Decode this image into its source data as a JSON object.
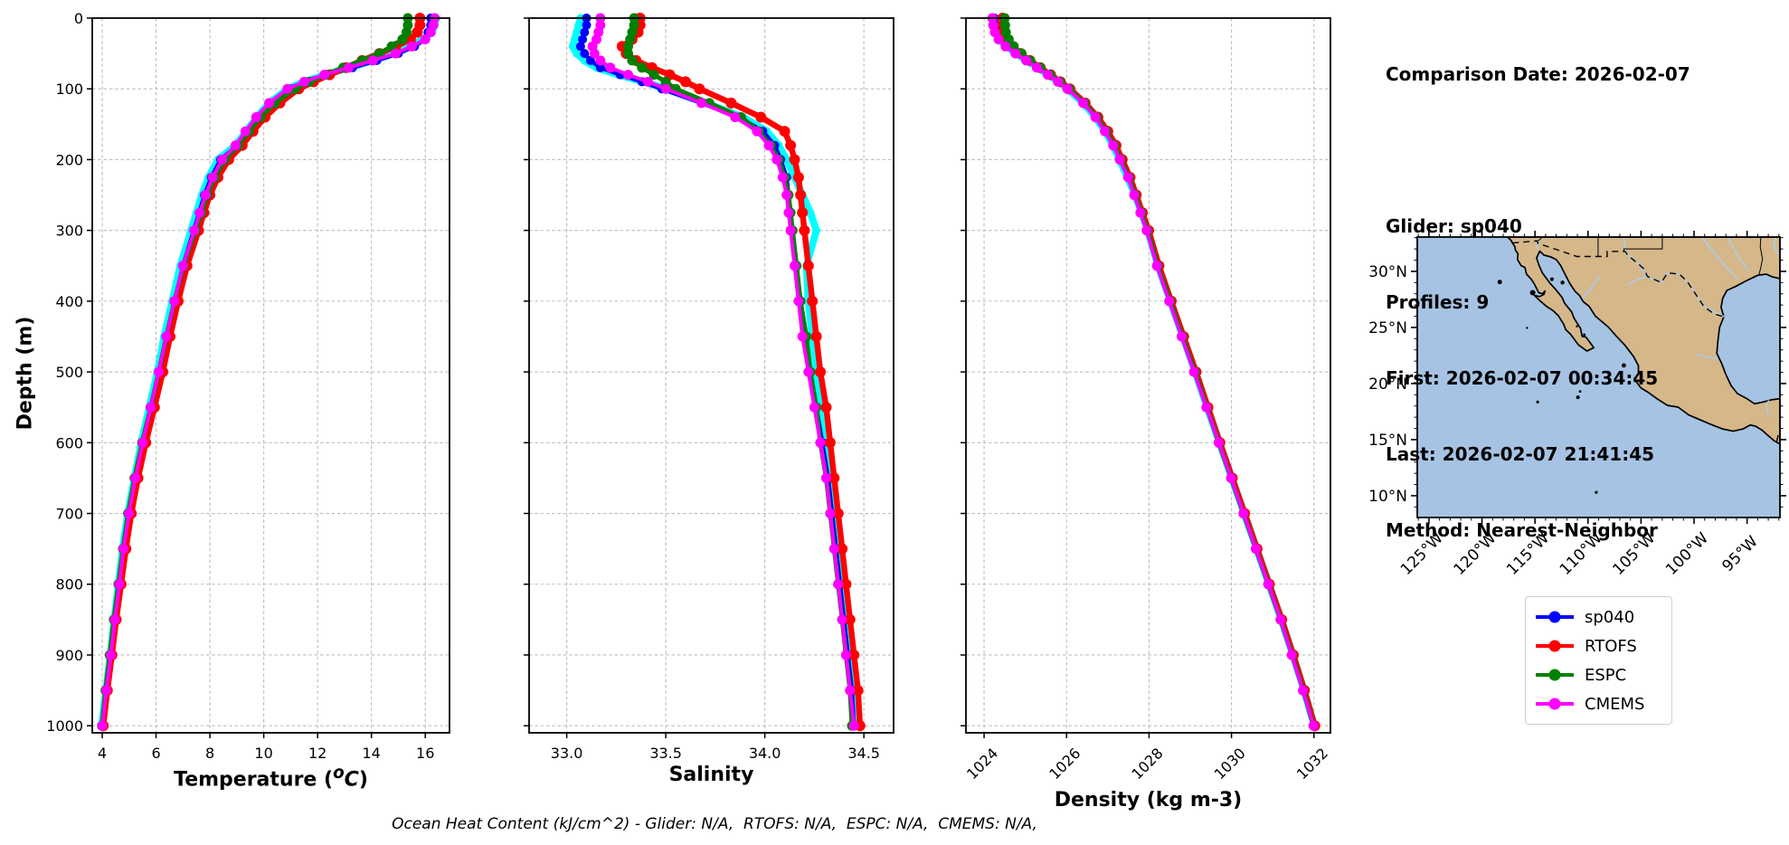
{
  "figure": {
    "background": "#ffffff"
  },
  "info": {
    "comparison_date": "Comparison Date: 2026-02-07",
    "glider": "Glider: sp040",
    "profiles": "Profiles: 9",
    "first": "First: 2026-02-07 00:34:45",
    "last": "Last: 2026-02-07 21:41:45",
    "method": "Method: Nearest-Neighbor"
  },
  "legend": {
    "items": [
      {
        "label": "sp040",
        "color": "#0000ff"
      },
      {
        "label": "RTOFS",
        "color": "#ff0000"
      },
      {
        "label": "ESPC",
        "color": "#008000"
      },
      {
        "label": "CMEMS",
        "color": "#ff00ff"
      }
    ]
  },
  "annotation": {
    "text": "Ocean Heat Content (kJ/cm^2) - Glider: N/A,  RTOFS: N/A,  ESPC: N/A,  CMEMS: N/A,"
  },
  "chart_data": {
    "type": "line",
    "ylabel": "Depth (m)",
    "ylim": [
      0,
      1010
    ],
    "yticks": [
      0,
      100,
      200,
      300,
      400,
      500,
      600,
      700,
      800,
      900,
      1000
    ],
    "depths_m": [
      0,
      10,
      20,
      30,
      40,
      50,
      60,
      70,
      80,
      90,
      100,
      120,
      140,
      160,
      180,
      200,
      225,
      250,
      275,
      300,
      350,
      400,
      450,
      500,
      550,
      600,
      650,
      700,
      750,
      800,
      850,
      900,
      950,
      1000
    ],
    "charts": [
      {
        "name": "temperature",
        "xlabel": "Temperature (oC)",
        "xlabel_parts": {
          "pre": "Temperature (",
          "sup": "o",
          "main": "C",
          "post": ")"
        },
        "xlim": [
          3.63,
          16.9
        ],
        "xticks": [
          4,
          6,
          8,
          10,
          12,
          14,
          16
        ],
        "xtick_labels": [
          "4",
          "6",
          "8",
          "10",
          "12",
          "14",
          "16"
        ],
        "xtick_rotation": 0,
        "series": [
          {
            "name": "raw",
            "color": "#00ffff",
            "lw": 8,
            "r": 4.5,
            "values": [
              16.4,
              16.35,
              16.25,
              15.9,
              15.45,
              14.85,
              14.05,
              13.15,
              12.3,
              11.5,
              10.9,
              10.2,
              9.75,
              9.35,
              8.95,
              8.3,
              7.95,
              7.7,
              7.5,
              7.3,
              6.9,
              6.6,
              6.3,
              6.05,
              5.75,
              5.45,
              5.2,
              4.95,
              4.76,
              4.6,
              4.45,
              4.3,
              4.14,
              3.98
            ]
          },
          {
            "name": "sp040",
            "color": "#0000ff",
            "lw": 4.5,
            "r": 5,
            "values": [
              16.2,
              16.2,
              16.1,
              16.0,
              15.6,
              15.0,
              14.2,
              13.3,
              12.4,
              11.6,
              11.0,
              10.3,
              9.8,
              9.4,
              9.0,
              8.4,
              8.05,
              7.8,
              7.6,
              7.4,
              7.0,
              6.7,
              6.4,
              6.12,
              5.82,
              5.5,
              5.22,
              4.98,
              4.78,
              4.62,
              4.46,
              4.31,
              4.15,
              4.0
            ]
          },
          {
            "name": "RTOFS",
            "color": "#ff0000",
            "lw": 6.5,
            "r": 6,
            "values": [
              15.8,
              15.8,
              15.7,
              15.45,
              14.9,
              14.3,
              13.65,
              13.05,
              12.45,
              11.85,
              11.3,
              10.6,
              10.05,
              9.6,
              9.2,
              8.7,
              8.3,
              8.0,
              7.78,
              7.58,
              7.15,
              6.82,
              6.52,
              6.25,
              5.94,
              5.62,
              5.33,
              5.08,
              4.88,
              4.7,
              4.52,
              4.36,
              4.19,
              4.04
            ]
          },
          {
            "name": "ESPC",
            "color": "#008000",
            "lw": 5,
            "r": 5.5,
            "values": [
              15.35,
              15.35,
              15.3,
              15.15,
              14.75,
              14.3,
              13.65,
              12.95,
              12.3,
              11.7,
              11.15,
              10.42,
              9.88,
              9.45,
              9.05,
              8.55,
              8.18,
              7.9,
              7.68,
              7.46,
              7.02,
              6.68,
              6.38,
              6.1,
              5.8,
              5.48,
              5.2,
              4.96,
              4.77,
              4.6,
              4.43,
              4.28,
              4.12,
              3.99
            ]
          },
          {
            "name": "CMEMS",
            "color": "#ff00ff",
            "lw": 4,
            "r": 5.5,
            "values": [
              16.35,
              16.3,
              16.2,
              16.0,
              15.5,
              14.9,
              14.05,
              13.15,
              12.25,
              11.5,
              10.88,
              10.2,
              9.72,
              9.32,
              8.95,
              8.45,
              8.1,
              7.84,
              7.62,
              7.42,
              7.0,
              6.68,
              6.38,
              6.1,
              5.8,
              5.5,
              5.23,
              4.99,
              4.79,
              4.63,
              4.47,
              4.32,
              4.15,
              4.0
            ]
          }
        ]
      },
      {
        "name": "salinity",
        "xlabel": "Salinity",
        "xlim": [
          32.81,
          34.65
        ],
        "xticks": [
          33.0,
          33.5,
          34.0,
          34.5
        ],
        "xtick_labels": [
          "33.0",
          "33.5",
          "34.0",
          "34.5"
        ],
        "xtick_rotation": 0,
        "series": [
          {
            "name": "raw",
            "color": "#00ffff",
            "lw": 8,
            "r": 4.5,
            "values": [
              33.07,
              33.06,
              33.05,
              33.04,
              33.03,
              33.05,
              33.09,
              33.15,
              33.26,
              33.39,
              33.5,
              33.7,
              33.89,
              34.01,
              34.07,
              34.11,
              34.15,
              34.19,
              34.23,
              34.26,
              34.21,
              34.22,
              34.24,
              34.26,
              34.28,
              34.31,
              34.33,
              34.35,
              34.37,
              34.39,
              34.41,
              34.43,
              34.45,
              34.46
            ]
          },
          {
            "name": "sp040",
            "color": "#0000ff",
            "lw": 4.5,
            "r": 5,
            "values": [
              33.1,
              33.1,
              33.09,
              33.08,
              33.07,
              33.09,
              33.12,
              33.17,
              33.27,
              33.38,
              33.48,
              33.68,
              33.87,
              33.99,
              34.05,
              34.08,
              34.11,
              34.12,
              34.13,
              34.14,
              34.16,
              34.18,
              34.2,
              34.23,
              34.26,
              34.29,
              34.32,
              34.34,
              34.36,
              34.38,
              34.4,
              34.42,
              34.44,
              34.45
            ]
          },
          {
            "name": "RTOFS",
            "color": "#ff0000",
            "lw": 6.5,
            "r": 6,
            "values": [
              33.37,
              33.37,
              33.36,
              33.33,
              33.28,
              33.3,
              33.35,
              33.43,
              33.52,
              33.6,
              33.67,
              33.83,
              33.98,
              34.1,
              34.13,
              34.15,
              34.17,
              34.18,
              34.19,
              34.2,
              34.22,
              34.24,
              34.26,
              34.28,
              34.31,
              34.33,
              34.35,
              34.37,
              34.39,
              34.41,
              34.43,
              34.45,
              34.47,
              34.48
            ]
          },
          {
            "name": "ESPC",
            "color": "#008000",
            "lw": 5,
            "r": 5.5,
            "values": [
              33.34,
              33.34,
              33.33,
              33.32,
              33.31,
              33.31,
              33.33,
              33.38,
              33.44,
              33.5,
              33.55,
              33.72,
              33.88,
              33.97,
              34.03,
              34.07,
              34.1,
              34.12,
              34.13,
              34.14,
              34.16,
              34.18,
              34.21,
              34.23,
              34.26,
              34.28,
              34.31,
              34.33,
              34.35,
              34.37,
              34.39,
              34.41,
              34.43,
              34.44
            ]
          },
          {
            "name": "CMEMS",
            "color": "#ff00ff",
            "lw": 4,
            "r": 5.5,
            "values": [
              33.17,
              33.17,
              33.16,
              33.15,
              33.13,
              33.14,
              33.17,
              33.22,
              33.31,
              33.41,
              33.5,
              33.68,
              33.85,
              33.96,
              34.02,
              34.06,
              34.09,
              34.11,
              34.12,
              34.13,
              34.15,
              34.17,
              34.19,
              34.22,
              34.25,
              34.28,
              34.31,
              34.33,
              34.35,
              34.37,
              34.39,
              34.41,
              34.43,
              34.45
            ]
          }
        ]
      },
      {
        "name": "density",
        "xlabel": "Density (kg m-3)",
        "xlim": [
          1023.56,
          1032.4
        ],
        "xticks": [
          1024,
          1026,
          1028,
          1030,
          1032
        ],
        "xtick_labels": [
          "1024",
          "1026",
          "1028",
          "1030",
          "1032"
        ],
        "xtick_rotation": 45,
        "series": [
          {
            "name": "raw",
            "color": "#00ffff",
            "lw": 8,
            "r": 4.5,
            "values": [
              1024.22,
              1024.24,
              1024.28,
              1024.37,
              1024.54,
              1024.78,
              1025.03,
              1025.3,
              1025.56,
              1025.8,
              1026.03,
              1026.4,
              1026.7,
              1026.93,
              1027.13,
              1027.28,
              1027.48,
              1027.66,
              1027.82,
              1027.97,
              1028.22,
              1028.52,
              1028.82,
              1029.12,
              1029.41,
              1029.71,
              1030.01,
              1030.31,
              1030.61,
              1030.91,
              1031.21,
              1031.49,
              1031.76,
              1032.01
            ]
          },
          {
            "name": "sp040",
            "color": "#0000ff",
            "lw": 4.5,
            "r": 5,
            "values": [
              1024.25,
              1024.27,
              1024.31,
              1024.4,
              1024.57,
              1024.8,
              1025.05,
              1025.32,
              1025.58,
              1025.82,
              1026.05,
              1026.42,
              1026.72,
              1026.95,
              1027.15,
              1027.3,
              1027.5,
              1027.65,
              1027.8,
              1027.95,
              1028.2,
              1028.5,
              1028.8,
              1029.1,
              1029.4,
              1029.7,
              1030.0,
              1030.3,
              1030.6,
              1030.9,
              1031.2,
              1031.48,
              1031.75,
              1032.0
            ]
          },
          {
            "name": "RTOFS",
            "color": "#ff0000",
            "lw": 6.5,
            "r": 6,
            "values": [
              1024.45,
              1024.46,
              1024.48,
              1024.56,
              1024.69,
              1024.89,
              1025.11,
              1025.36,
              1025.61,
              1025.85,
              1026.08,
              1026.45,
              1026.76,
              1027.0,
              1027.2,
              1027.35,
              1027.54,
              1027.69,
              1027.84,
              1027.99,
              1028.24,
              1028.54,
              1028.84,
              1029.14,
              1029.43,
              1029.72,
              1030.02,
              1030.32,
              1030.62,
              1030.92,
              1031.22,
              1031.5,
              1031.77,
              1032.02
            ]
          },
          {
            "name": "ESPC",
            "color": "#008000",
            "lw": 5,
            "r": 5.5,
            "values": [
              1024.5,
              1024.51,
              1024.53,
              1024.6,
              1024.72,
              1024.91,
              1025.12,
              1025.36,
              1025.6,
              1025.84,
              1026.06,
              1026.43,
              1026.73,
              1026.96,
              1027.16,
              1027.31,
              1027.51,
              1027.66,
              1027.81,
              1027.96,
              1028.21,
              1028.51,
              1028.81,
              1029.11,
              1029.4,
              1029.69,
              1029.99,
              1030.29,
              1030.59,
              1030.89,
              1031.19,
              1031.47,
              1031.74,
              1031.99
            ]
          },
          {
            "name": "CMEMS",
            "color": "#ff00ff",
            "lw": 4,
            "r": 5.5,
            "values": [
              1024.2,
              1024.22,
              1024.26,
              1024.35,
              1024.52,
              1024.76,
              1025.02,
              1025.28,
              1025.54,
              1025.79,
              1026.02,
              1026.4,
              1026.7,
              1026.93,
              1027.13,
              1027.29,
              1027.49,
              1027.64,
              1027.79,
              1027.94,
              1028.19,
              1028.49,
              1028.79,
              1029.09,
              1029.39,
              1029.69,
              1029.99,
              1030.29,
              1030.59,
              1030.89,
              1031.19,
              1031.46,
              1031.73,
              1031.99
            ]
          }
        ]
      }
    ]
  },
  "map": {
    "extent": {
      "lon": [
        -126.1,
        -91.9
      ],
      "lat": [
        8.06,
        33.06
      ]
    },
    "lat_ticks": [
      {
        "value": 30,
        "label": "30°N"
      },
      {
        "value": 25,
        "label": "25°N"
      },
      {
        "value": 20,
        "label": "20°N"
      },
      {
        "value": 15,
        "label": "15°N"
      },
      {
        "value": 10,
        "label": "10°N"
      }
    ],
    "lon_ticks": [
      {
        "value": -125,
        "label": "125°W"
      },
      {
        "value": -120,
        "label": "120°W"
      },
      {
        "value": -115,
        "label": "115°W"
      },
      {
        "value": -110,
        "label": "110°W"
      },
      {
        "value": -105,
        "label": "105°W"
      },
      {
        "value": -100,
        "label": "100°W"
      },
      {
        "value": -95,
        "label": "95°W"
      }
    ],
    "colors": {
      "land": "#d5b78a",
      "ocean": "#a6c3e3",
      "river": "#a9cef0",
      "coast": "#000000"
    }
  }
}
